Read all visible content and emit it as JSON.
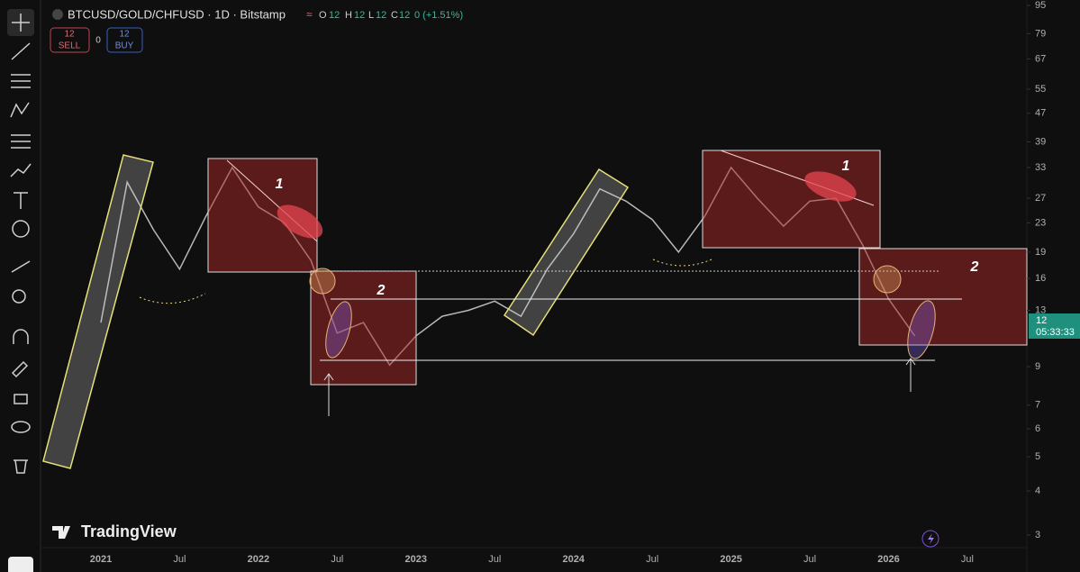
{
  "header": {
    "symbol": "BTCUSD/GOLD/CHFUSD · 1D · Bitstamp",
    "ohlc": [
      "O",
      "12",
      "H",
      "12",
      "L",
      "12",
      "C",
      "12",
      "0 (+1.51%)"
    ]
  },
  "trade": {
    "sell_price": "12",
    "sell_label": "SELL",
    "spread": "0",
    "buy_price": "12",
    "buy_label": "BUY"
  },
  "badge": {
    "price": "12",
    "countdown": "05:33:33"
  },
  "annotations": [
    "1",
    "2",
    "1",
    "2"
  ],
  "logo": "TradingView",
  "chart_data": {
    "type": "line",
    "color": "#b8b8b8",
    "log_scale": true,
    "grid": false,
    "categories": [
      "2021",
      null,
      null,
      "Jul",
      null,
      null,
      "2022",
      null,
      null,
      "Jul",
      null,
      null,
      "2023",
      null,
      null,
      "Jul",
      null,
      null,
      "2024",
      null,
      null,
      "Jul",
      null,
      null,
      "2025",
      null,
      null,
      "Jul",
      null,
      null,
      "2026",
      null,
      null,
      "Jul"
    ],
    "values": [
      12,
      30,
      22,
      17,
      24,
      33,
      25.5,
      23,
      18,
      11.2,
      12,
      9.1,
      11,
      12.5,
      13,
      13.8,
      12.5,
      17,
      21.4,
      28.7,
      26.5,
      23.5,
      19,
      24,
      33,
      27,
      22.5,
      26.5,
      27,
      20,
      14,
      11,
      null,
      null
    ],
    "ylim": [
      3,
      95
    ],
    "yticks": [
      3,
      4,
      5,
      6,
      7,
      9,
      13,
      16,
      19,
      23,
      27,
      33,
      39,
      47,
      55,
      67,
      79,
      95
    ]
  }
}
